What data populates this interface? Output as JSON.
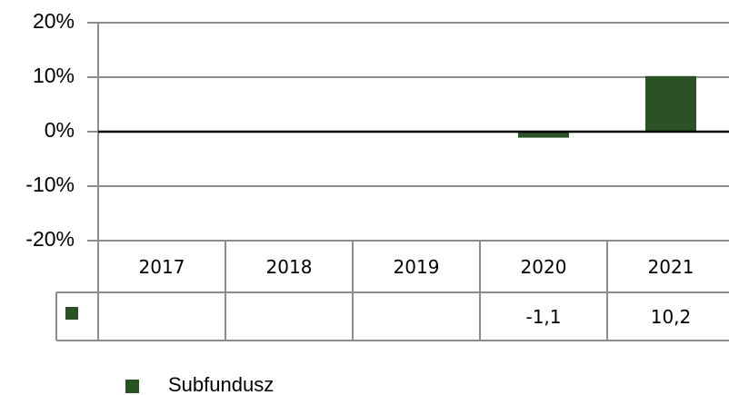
{
  "chart_data": {
    "type": "bar",
    "categories": [
      "2017",
      "2018",
      "2019",
      "2020",
      "2021"
    ],
    "series": [
      {
        "name": "Subfundusz",
        "color": "#2a5224",
        "values": [
          null,
          null,
          null,
          -1.1,
          10.2
        ],
        "value_labels": [
          null,
          null,
          null,
          "-1,1",
          "10,2"
        ]
      }
    ],
    "ylim": [
      -20,
      20
    ],
    "yticks": [
      {
        "value": -20,
        "label": "-20%"
      },
      {
        "value": -10,
        "label": "-10%"
      },
      {
        "value": 0,
        "label": "0%"
      },
      {
        "value": 10,
        "label": "10%"
      },
      {
        "value": 20,
        "label": "20%"
      }
    ],
    "grid": true,
    "legend": "bottom"
  }
}
